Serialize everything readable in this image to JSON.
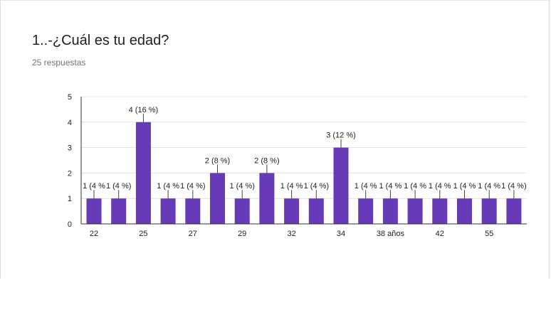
{
  "question": {
    "title": "1..-¿Cuál es tu edad?",
    "response_count": "25 respuestas"
  },
  "chart_data": {
    "type": "bar",
    "title": "",
    "xlabel": "",
    "ylabel": "",
    "ylim": [
      0,
      5
    ],
    "yticks": [
      0,
      1,
      2,
      3,
      4,
      5
    ],
    "grid": true,
    "bar_color": "#673ab7",
    "categories": [
      "22",
      "",
      "25",
      "",
      "27",
      "",
      "29",
      "",
      "32",
      "",
      "34",
      "",
      "38 años",
      "",
      "42",
      "",
      "55",
      ""
    ],
    "values": [
      1,
      1,
      4,
      1,
      1,
      2,
      1,
      2,
      1,
      1,
      3,
      1,
      1,
      1,
      1,
      1,
      1,
      1
    ],
    "data_labels": [
      "1 (4 %",
      "1 (4 %)",
      "4 (16 %)",
      "1 (4 %",
      "1 (4 %)",
      "2 (8 %)",
      "1 (4 %)",
      "2 (8 %)",
      "1 (4 %",
      "1 (4 %)",
      "3 (12 %)",
      "1 (4 %",
      "1 (4 %",
      "1 (4 %",
      "1 (4 %",
      "1 (4 %",
      "1 (4 %",
      "1 (4 %)"
    ]
  }
}
